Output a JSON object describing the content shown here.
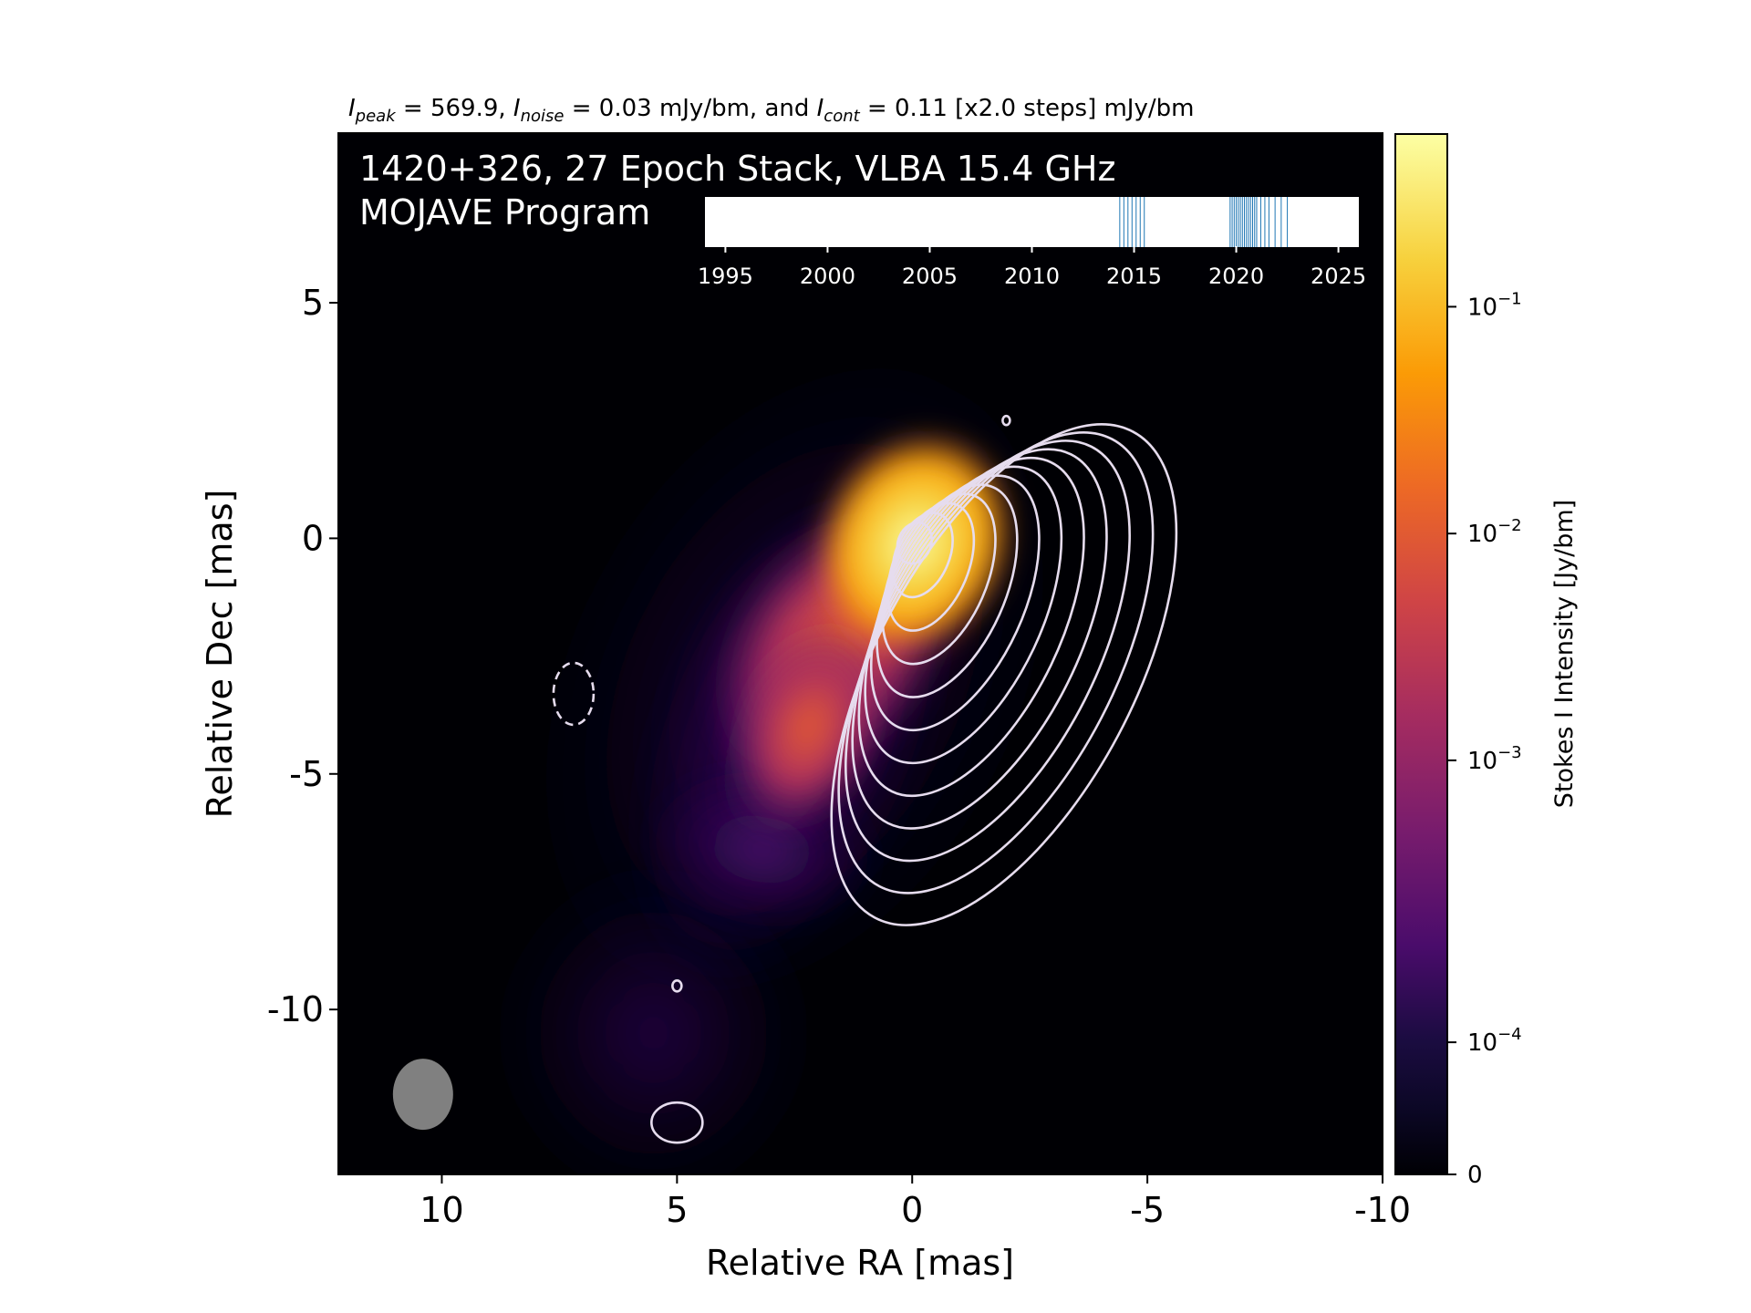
{
  "chart_data": {
    "type": "heatmap",
    "header": {
      "peak_sym": "I",
      "peak_sub": "peak",
      "peak_text": " = 569.9, ",
      "noise_sym": "I",
      "noise_sub": "noise",
      "noise_text": " = 0.03 mJy/bm, and ",
      "cont_sym": "I",
      "cont_sub": "cont",
      "cont_text": " = 0.11 [x2.0 steps] mJy/bm"
    },
    "title_line1": "1420+326, 27 Epoch Stack, VLBA 15.4 GHz",
    "title_line2": "MOJAVE Program",
    "xlabel": "Relative RA [mas]",
    "ylabel": "Relative Dec [mas]",
    "xlim": [
      12.2,
      -10
    ],
    "ylim": [
      -13.5,
      8.6
    ],
    "x_ticks": [
      {
        "v": 10,
        "label": "10"
      },
      {
        "v": 5,
        "label": "5"
      },
      {
        "v": 0,
        "label": "0"
      },
      {
        "v": -5,
        "label": "-5"
      },
      {
        "v": -10,
        "label": "-10"
      }
    ],
    "y_ticks": [
      {
        "v": 5,
        "label": "5"
      },
      {
        "v": 0,
        "label": "0"
      },
      {
        "v": -5,
        "label": "-5"
      },
      {
        "v": -10,
        "label": "-10"
      }
    ],
    "colorbar": {
      "label": "Stokes I Intensity [Jy/bm]",
      "ticks": [
        {
          "label": "0",
          "exp": "",
          "frac": 0.0
        },
        {
          "label": "10",
          "exp": "−4",
          "frac": 0.127
        },
        {
          "label": "10",
          "exp": "−3",
          "frac": 0.398
        },
        {
          "label": "10",
          "exp": "−2",
          "frac": 0.616
        },
        {
          "label": "10",
          "exp": "−1",
          "frac": 0.834
        }
      ]
    },
    "peak_mJy_per_beam": 569.9,
    "noise_mJy_per_beam": 0.03,
    "lowest_contour_mJy_per_beam": 0.11,
    "contour_step_factor": 2.0,
    "core": {
      "ra": -0.05,
      "dec": -0.1
    },
    "beam": {
      "ra": 10.4,
      "dec": -11.8
    },
    "epoch_timeline": {
      "xlim": [
        1994,
        2026
      ],
      "ticks": [
        1995,
        2000,
        2005,
        2010,
        2015,
        2020,
        2025
      ],
      "epochs": [
        2014.3,
        2014.5,
        2014.7,
        2014.9,
        2015.1,
        2015.3,
        2015.5,
        2019.7,
        2019.9,
        2020.1,
        2020.2,
        2020.3,
        2020.4,
        2020.5,
        2020.6,
        2020.7,
        2020.8,
        2020.9,
        2021.0,
        2021.2,
        2021.4,
        2021.6,
        2021.9,
        2022.2,
        2022.5,
        2019.8,
        2020.0
      ]
    }
  }
}
